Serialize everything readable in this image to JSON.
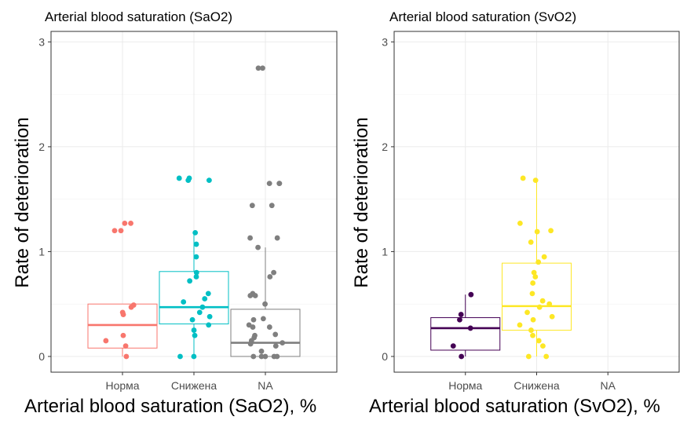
{
  "chart_data": [
    {
      "type": "box",
      "title": "Arterial blood saturation (SaO2)",
      "xlabel": "Arterial blood saturation (SaO2), %",
      "ylabel": "Rate of deterioration",
      "categories": [
        "Норма",
        "Снижена",
        "NA"
      ],
      "y_ticks": [
        "0",
        "1",
        "2",
        "3"
      ],
      "ylim": [
        -0.15,
        3.1
      ],
      "grid": true,
      "boxes": [
        {
          "category": "Норма",
          "color": "#F8766D",
          "q1": 0.08,
          "median": 0.3,
          "q3": 0.5,
          "whisker_low": 0.0,
          "whisker_high": 0.5
        },
        {
          "category": "Снижена",
          "color": "#00BFC4",
          "q1": 0.31,
          "median": 0.47,
          "q3": 0.81,
          "whisker_low": 0.0,
          "whisker_high": 1.18
        },
        {
          "category": "NA",
          "color": "#7F7F7F",
          "q1": 0.0,
          "median": 0.13,
          "q3": 0.45,
          "whisker_low": 0.0,
          "whisker_high": 1.04
        }
      ],
      "points": [
        {
          "category": "Норма",
          "values": [
            1.27,
            1.27,
            1.2,
            1.2,
            0.49,
            0.47,
            0.42,
            0.4,
            0.2,
            0.15,
            0.1,
            0.0
          ]
        },
        {
          "category": "Снижена",
          "values": [
            1.7,
            1.7,
            1.68,
            1.68,
            1.18,
            1.07,
            0.95,
            0.8,
            0.76,
            0.72,
            0.6,
            0.55,
            0.52,
            0.47,
            0.42,
            0.38,
            0.35,
            0.3,
            0.25,
            0.2,
            0.0,
            0.0
          ]
        },
        {
          "category": "NA",
          "values": [
            2.75,
            2.75,
            1.65,
            1.65,
            1.65,
            1.44,
            1.44,
            1.13,
            1.13,
            1.04,
            0.8,
            0.76,
            0.6,
            0.58,
            0.58,
            0.5,
            0.36,
            0.35,
            0.3,
            0.28,
            0.28,
            0.21,
            0.2,
            0.18,
            0.15,
            0.13,
            0.12,
            0.1,
            0.05,
            0.0,
            0.0,
            0.0,
            0.0,
            0.0
          ]
        }
      ]
    },
    {
      "type": "box",
      "title": "Arterial blood saturation (SvO2)",
      "xlabel": "Arterial blood saturation (SvO2), %",
      "ylabel": "Rate of deterioration",
      "categories": [
        "Норма",
        "Снижена",
        "NA"
      ],
      "y_ticks": [
        "0",
        "1",
        "2",
        "3"
      ],
      "ylim": [
        -0.15,
        3.1
      ],
      "grid": true,
      "boxes": [
        {
          "category": "Норма",
          "color": "#440154",
          "q1": 0.06,
          "median": 0.27,
          "q3": 0.37,
          "whisker_low": 0.0,
          "whisker_high": 0.59
        },
        {
          "category": "Снижена",
          "color": "#FDE725",
          "q1": 0.25,
          "median": 0.48,
          "q3": 0.89,
          "whisker_low": 0.0,
          "whisker_high": 1.7
        }
      ],
      "points": [
        {
          "category": "Норма",
          "values": [
            0.59,
            0.4,
            0.35,
            0.27,
            0.1,
            0.0
          ]
        },
        {
          "category": "Снижена",
          "values": [
            1.7,
            1.68,
            1.27,
            1.2,
            1.19,
            1.09,
            0.95,
            0.9,
            0.8,
            0.76,
            0.7,
            0.6,
            0.53,
            0.5,
            0.47,
            0.42,
            0.38,
            0.35,
            0.3,
            0.25,
            0.2,
            0.15,
            0.1,
            0.0,
            0.0
          ]
        }
      ]
    }
  ]
}
